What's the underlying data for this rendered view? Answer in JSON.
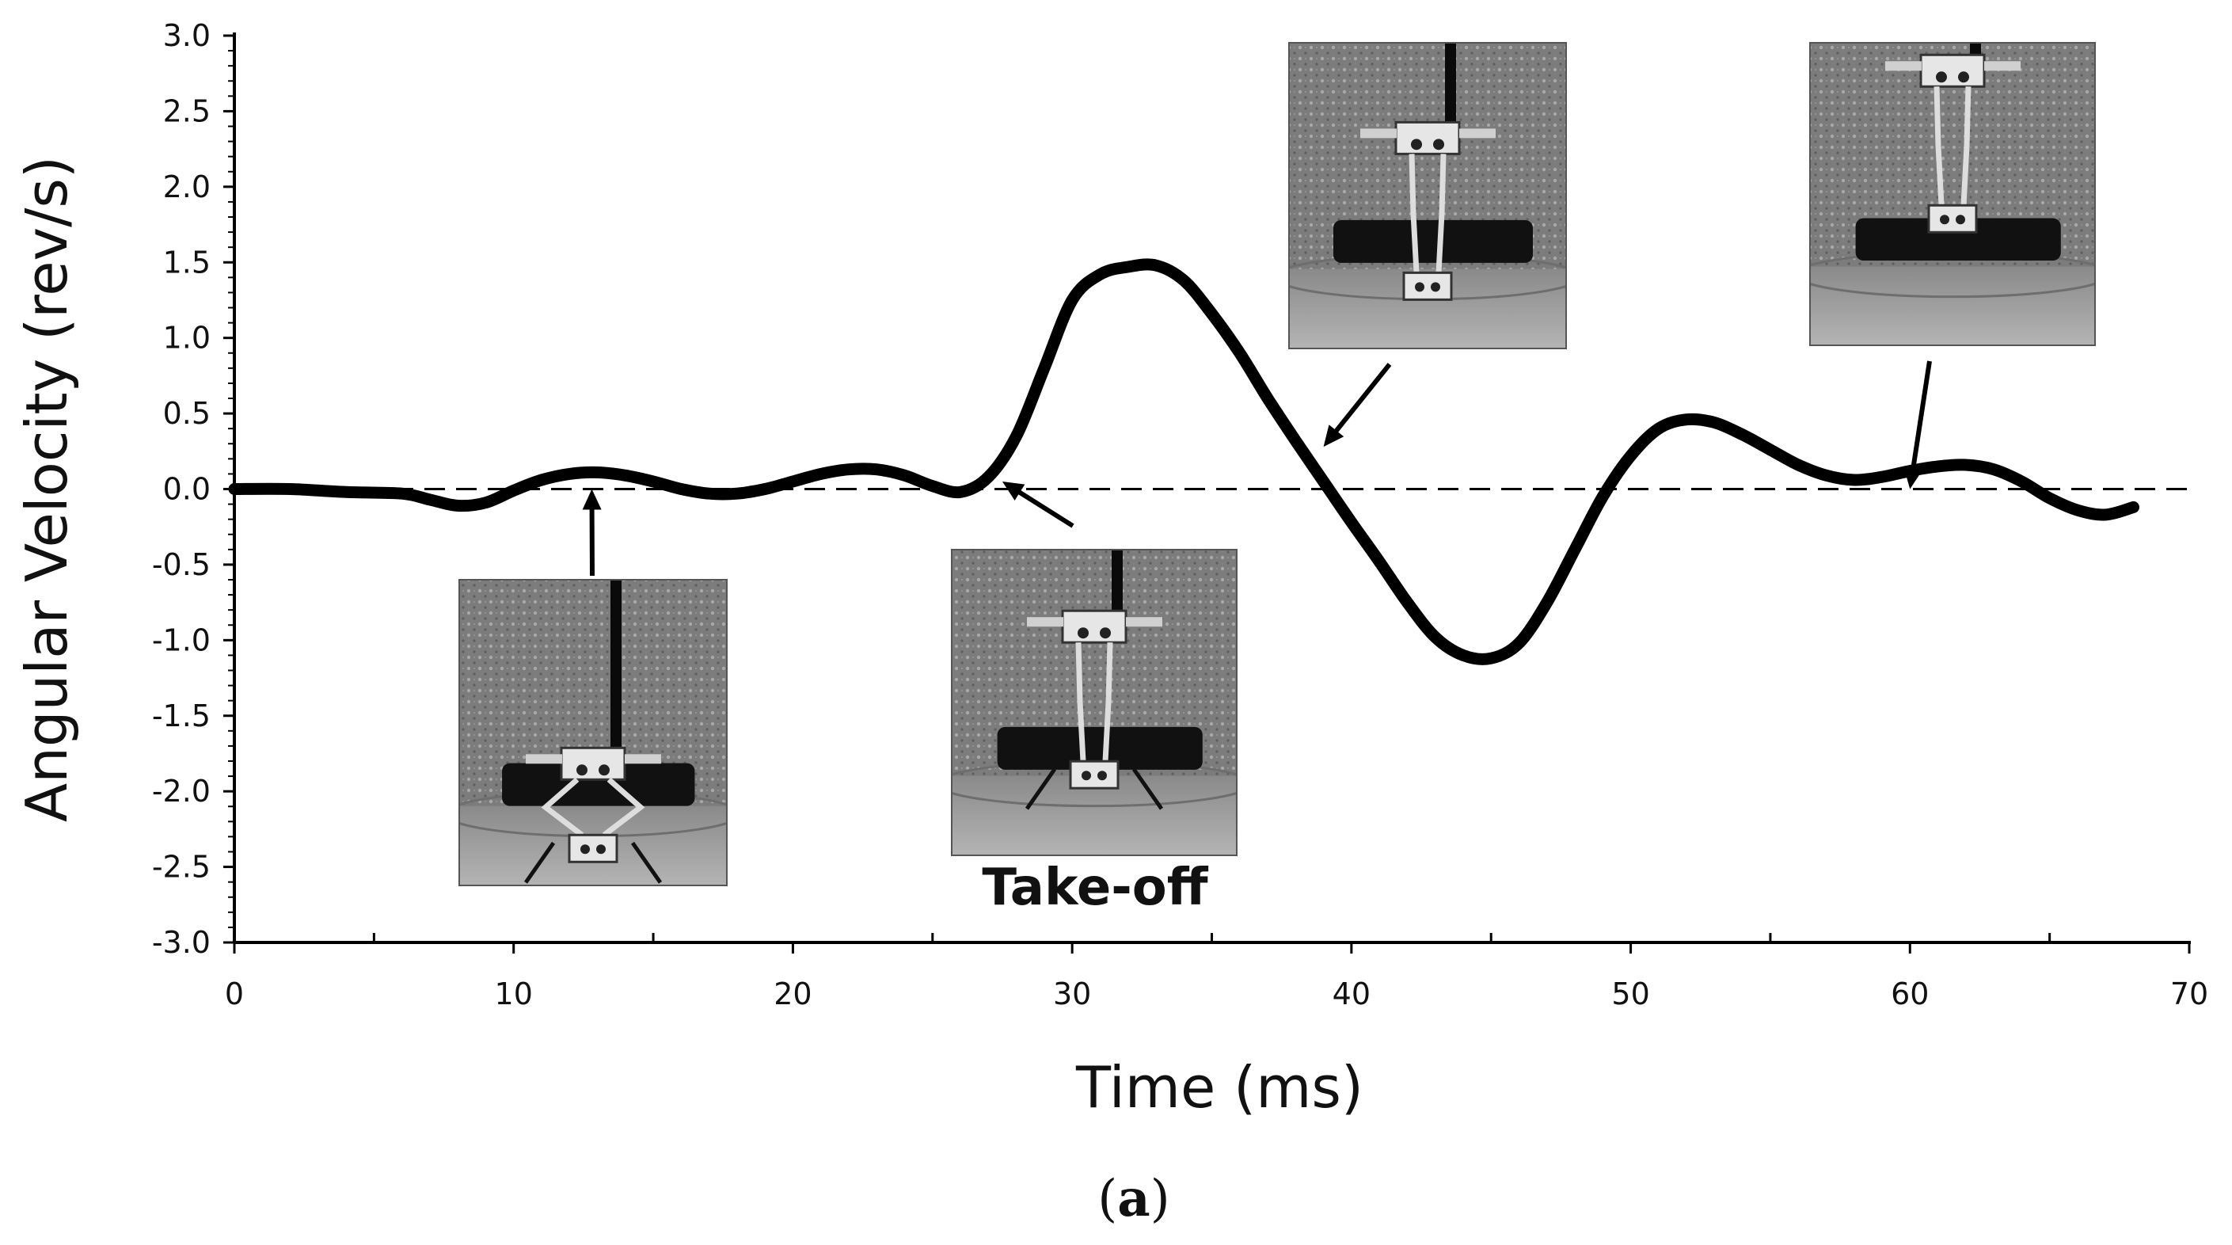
{
  "chart_data": {
    "type": "line",
    "title": "",
    "xlabel": "Time (ms)",
    "ylabel": "Angular Velocity (rev/s)",
    "xlim": [
      0,
      70
    ],
    "ylim": [
      -3.0,
      3.0
    ],
    "x_ticks": [
      0,
      10,
      20,
      30,
      40,
      50,
      60,
      70
    ],
    "x_tick_labels": [
      "0",
      "10",
      "20",
      "30",
      "40",
      "50",
      "60",
      "70"
    ],
    "y_ticks": [
      3.0,
      2.5,
      2.0,
      1.5,
      1.0,
      0.5,
      0.0,
      -0.5,
      -1.0,
      -1.5,
      -2.0,
      -2.5,
      -3.0
    ],
    "y_tick_labels": [
      "3.0",
      "2.5",
      "2.0",
      "1.5",
      "1.0",
      "0.5",
      "0.0",
      "-0.5",
      "-1.0",
      "-1.5",
      "-2.0",
      "-2.5",
      "-3.0"
    ],
    "grid": false,
    "reference_line": {
      "y": 0,
      "style": "dashed"
    },
    "series": [
      {
        "x": [
          0,
          2,
          4,
          6,
          7,
          8,
          9,
          10,
          11,
          12,
          13,
          14,
          15,
          16,
          17,
          18,
          19,
          20,
          21,
          22,
          23,
          24,
          25,
          26,
          27,
          28,
          29,
          30,
          31,
          32,
          33,
          34,
          35,
          36,
          37,
          38,
          39,
          40,
          41,
          42,
          43,
          44,
          45,
          46,
          47,
          48,
          49,
          50,
          51,
          52,
          53,
          54,
          55,
          56,
          57,
          58,
          59,
          60,
          61,
          62,
          63,
          64,
          65,
          66,
          67,
          68
        ],
        "y": [
          0.0,
          0.0,
          -0.02,
          -0.03,
          -0.07,
          -0.11,
          -0.09,
          -0.01,
          0.06,
          0.1,
          0.11,
          0.09,
          0.05,
          0.0,
          -0.03,
          -0.03,
          0.0,
          0.05,
          0.1,
          0.13,
          0.13,
          0.09,
          0.02,
          -0.02,
          0.08,
          0.35,
          0.8,
          1.25,
          1.42,
          1.47,
          1.48,
          1.38,
          1.16,
          0.9,
          0.6,
          0.32,
          0.05,
          -0.22,
          -0.48,
          -0.75,
          -0.98,
          -1.1,
          -1.12,
          -1.02,
          -0.75,
          -0.4,
          -0.05,
          0.22,
          0.4,
          0.46,
          0.44,
          0.36,
          0.26,
          0.16,
          0.09,
          0.06,
          0.08,
          0.12,
          0.15,
          0.16,
          0.13,
          0.05,
          -0.06,
          -0.14,
          -0.17,
          -0.12
        ]
      }
    ],
    "annotations": [
      {
        "text": "Take-off",
        "x": 27.5,
        "y": 0.05
      }
    ],
    "insets": [
      {
        "name": "robot-crouched-photo",
        "points_to": {
          "x": 12.8,
          "y": 0.0
        }
      },
      {
        "name": "robot-takeoff-photo",
        "points_to": {
          "x": 27.5,
          "y": 0.05
        }
      },
      {
        "name": "robot-extended-photo",
        "points_to": {
          "x": 39.0,
          "y": 0.28
        }
      },
      {
        "name": "robot-airborne-photo",
        "points_to": {
          "x": 60.0,
          "y": 0.0
        }
      }
    ]
  },
  "panel_label": {
    "paren_open": "(",
    "letter": "a",
    "paren_close": ")"
  }
}
